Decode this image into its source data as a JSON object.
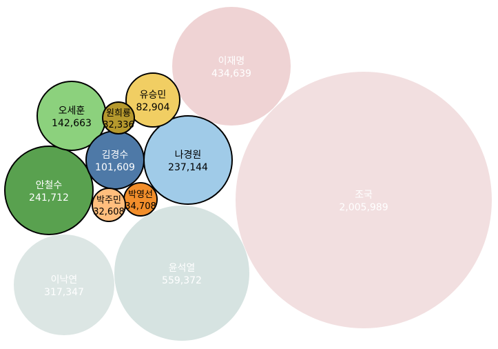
{
  "chart_data": {
    "type": "bubble",
    "title": "",
    "items": [
      {
        "name": "조국",
        "value_label": "2,005,989",
        "value": 2005989,
        "fill": "#f2dfe0",
        "stroke": "none",
        "text": "#ffffff",
        "highlight": false
      },
      {
        "name": "윤석열",
        "value_label": "559,372",
        "value": 559372,
        "fill": "#d6e3e1",
        "stroke": "none",
        "text": "#ffffff",
        "highlight": false
      },
      {
        "name": "이재명",
        "value_label": "434,639",
        "value": 434639,
        "fill": "#efd3d4",
        "stroke": "none",
        "text": "#ffffff",
        "highlight": false
      },
      {
        "name": "이낙연",
        "value_label": "317,347",
        "value": 317347,
        "fill": "#dce6e4",
        "stroke": "none",
        "text": "#ffffff",
        "highlight": false
      },
      {
        "name": "안철수",
        "value_label": "241,712",
        "value": 241712,
        "fill": "#59a14f",
        "stroke": "#000000",
        "text": "#ffffff",
        "highlight": true
      },
      {
        "name": "나경원",
        "value_label": "237,144",
        "value": 237144,
        "fill": "#a0cbe8",
        "stroke": "#000000",
        "text": "#000000",
        "highlight": true
      },
      {
        "name": "오세훈",
        "value_label": "142,663",
        "value": 142663,
        "fill": "#8cd17d",
        "stroke": "#000000",
        "text": "#000000",
        "highlight": true
      },
      {
        "name": "김경수",
        "value_label": "101,609",
        "value": 101609,
        "fill": "#4e79a7",
        "stroke": "#000000",
        "text": "#ffffff",
        "highlight": true
      },
      {
        "name": "유승민",
        "value_label": "82,904",
        "value": 82904,
        "fill": "#f1ce63",
        "stroke": "#000000",
        "text": "#000000",
        "highlight": true
      },
      {
        "name": "박영선",
        "value_label": "34,708",
        "value": 34708,
        "fill": "#f28e2b",
        "stroke": "#000000",
        "text": "#000000",
        "highlight": true
      },
      {
        "name": "박주민",
        "value_label": "32,608",
        "value": 32608,
        "fill": "#ffbe7d",
        "stroke": "#000000",
        "text": "#000000",
        "highlight": true
      },
      {
        "name": "원희룡",
        "value_label": "32,336",
        "value": 32336,
        "fill": "#b6992d",
        "stroke": "#000000",
        "text": "#000000",
        "highlight": true
      }
    ]
  }
}
